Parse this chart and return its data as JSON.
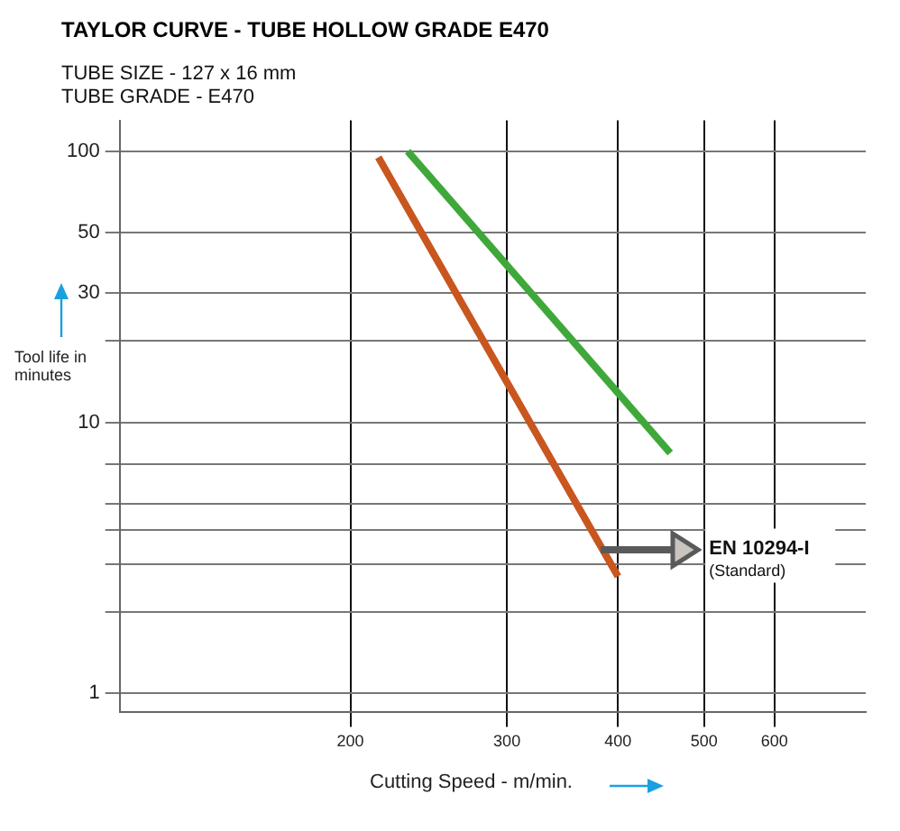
{
  "chart_data": {
    "type": "line",
    "title": "TAYLOR CURVE - TUBE HOLLOW GRADE E470",
    "subtitle": "TUBE SIZE - 127 x 16 mm\nTUBE GRADE - E470",
    "xlabel": "Cutting Speed - m/min.",
    "ylabel": "Tool life in minutes",
    "series": [
      {
        "color": "#c8561e",
        "x": [
          215,
          400
        ],
        "values": [
          95,
          2.7
        ]
      },
      {
        "color": "#3fa83a",
        "x": [
          232,
          458
        ],
        "values": [
          100,
          7.7
        ]
      }
    ],
    "xlim": [
      110,
      760
    ],
    "xticks": [
      200,
      300,
      400,
      500,
      600
    ],
    "ylim": [
      0.85,
      130
    ],
    "yticks": [
      1,
      {
        "value": 2,
        "label": null
      },
      {
        "value": 3,
        "label": null
      },
      {
        "value": 4,
        "label": null
      },
      {
        "value": 5,
        "label": null
      },
      {
        "value": 7,
        "label": null
      },
      10,
      {
        "value": 20,
        "label": null
      },
      30,
      50,
      100
    ],
    "log": "xy",
    "grid": true,
    "legend": false,
    "marker": "none",
    "line_style": "solid",
    "annotations": [
      "EN 10294-I\n(Standard)"
    ]
  }
}
